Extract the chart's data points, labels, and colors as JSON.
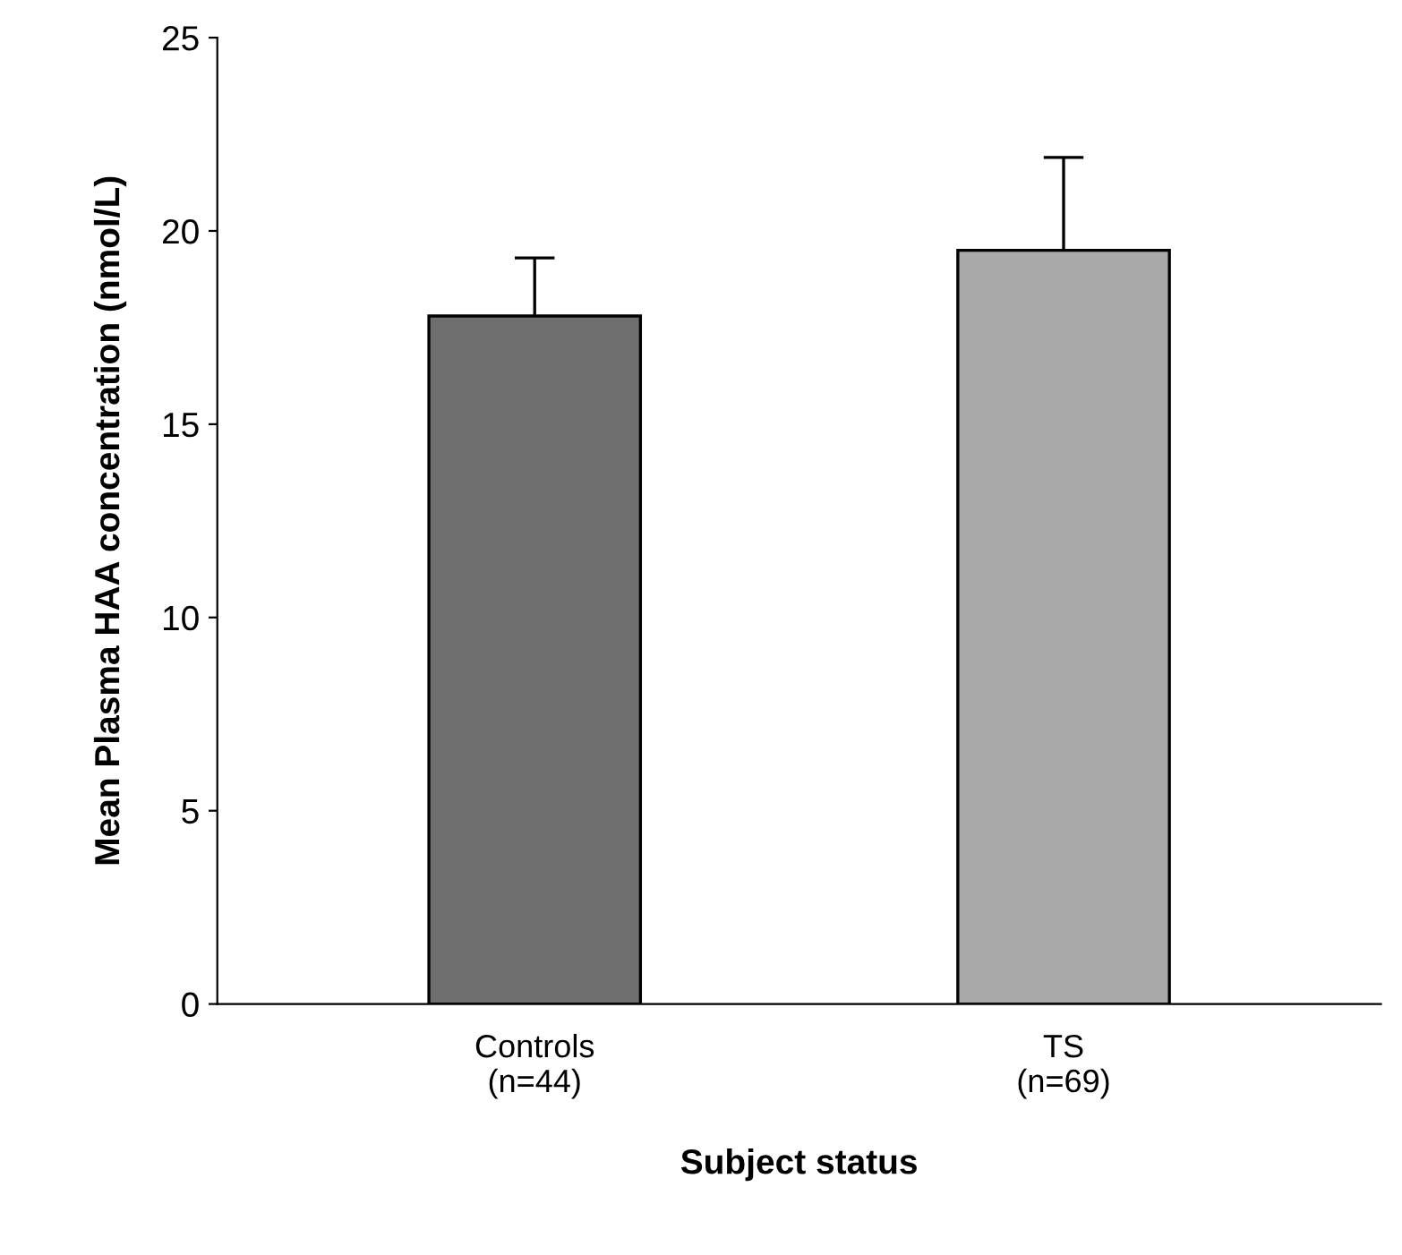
{
  "chart_data": {
    "type": "bar",
    "xlabel": "Subject status",
    "ylabel": "Mean Plasma HAA concentration (nmol/L)",
    "categories": [
      "Controls\n(n=44)",
      "TS\n(n=69)"
    ],
    "values": [
      17.8,
      19.5
    ],
    "errors": [
      1.5,
      2.4
    ],
    "colors": [
      "#6e6e6e",
      "#a9a9a9"
    ],
    "ylim": [
      0,
      25
    ],
    "yticks": [
      0,
      5,
      10,
      15,
      20,
      25
    ],
    "grid": false,
    "legend": false
  }
}
